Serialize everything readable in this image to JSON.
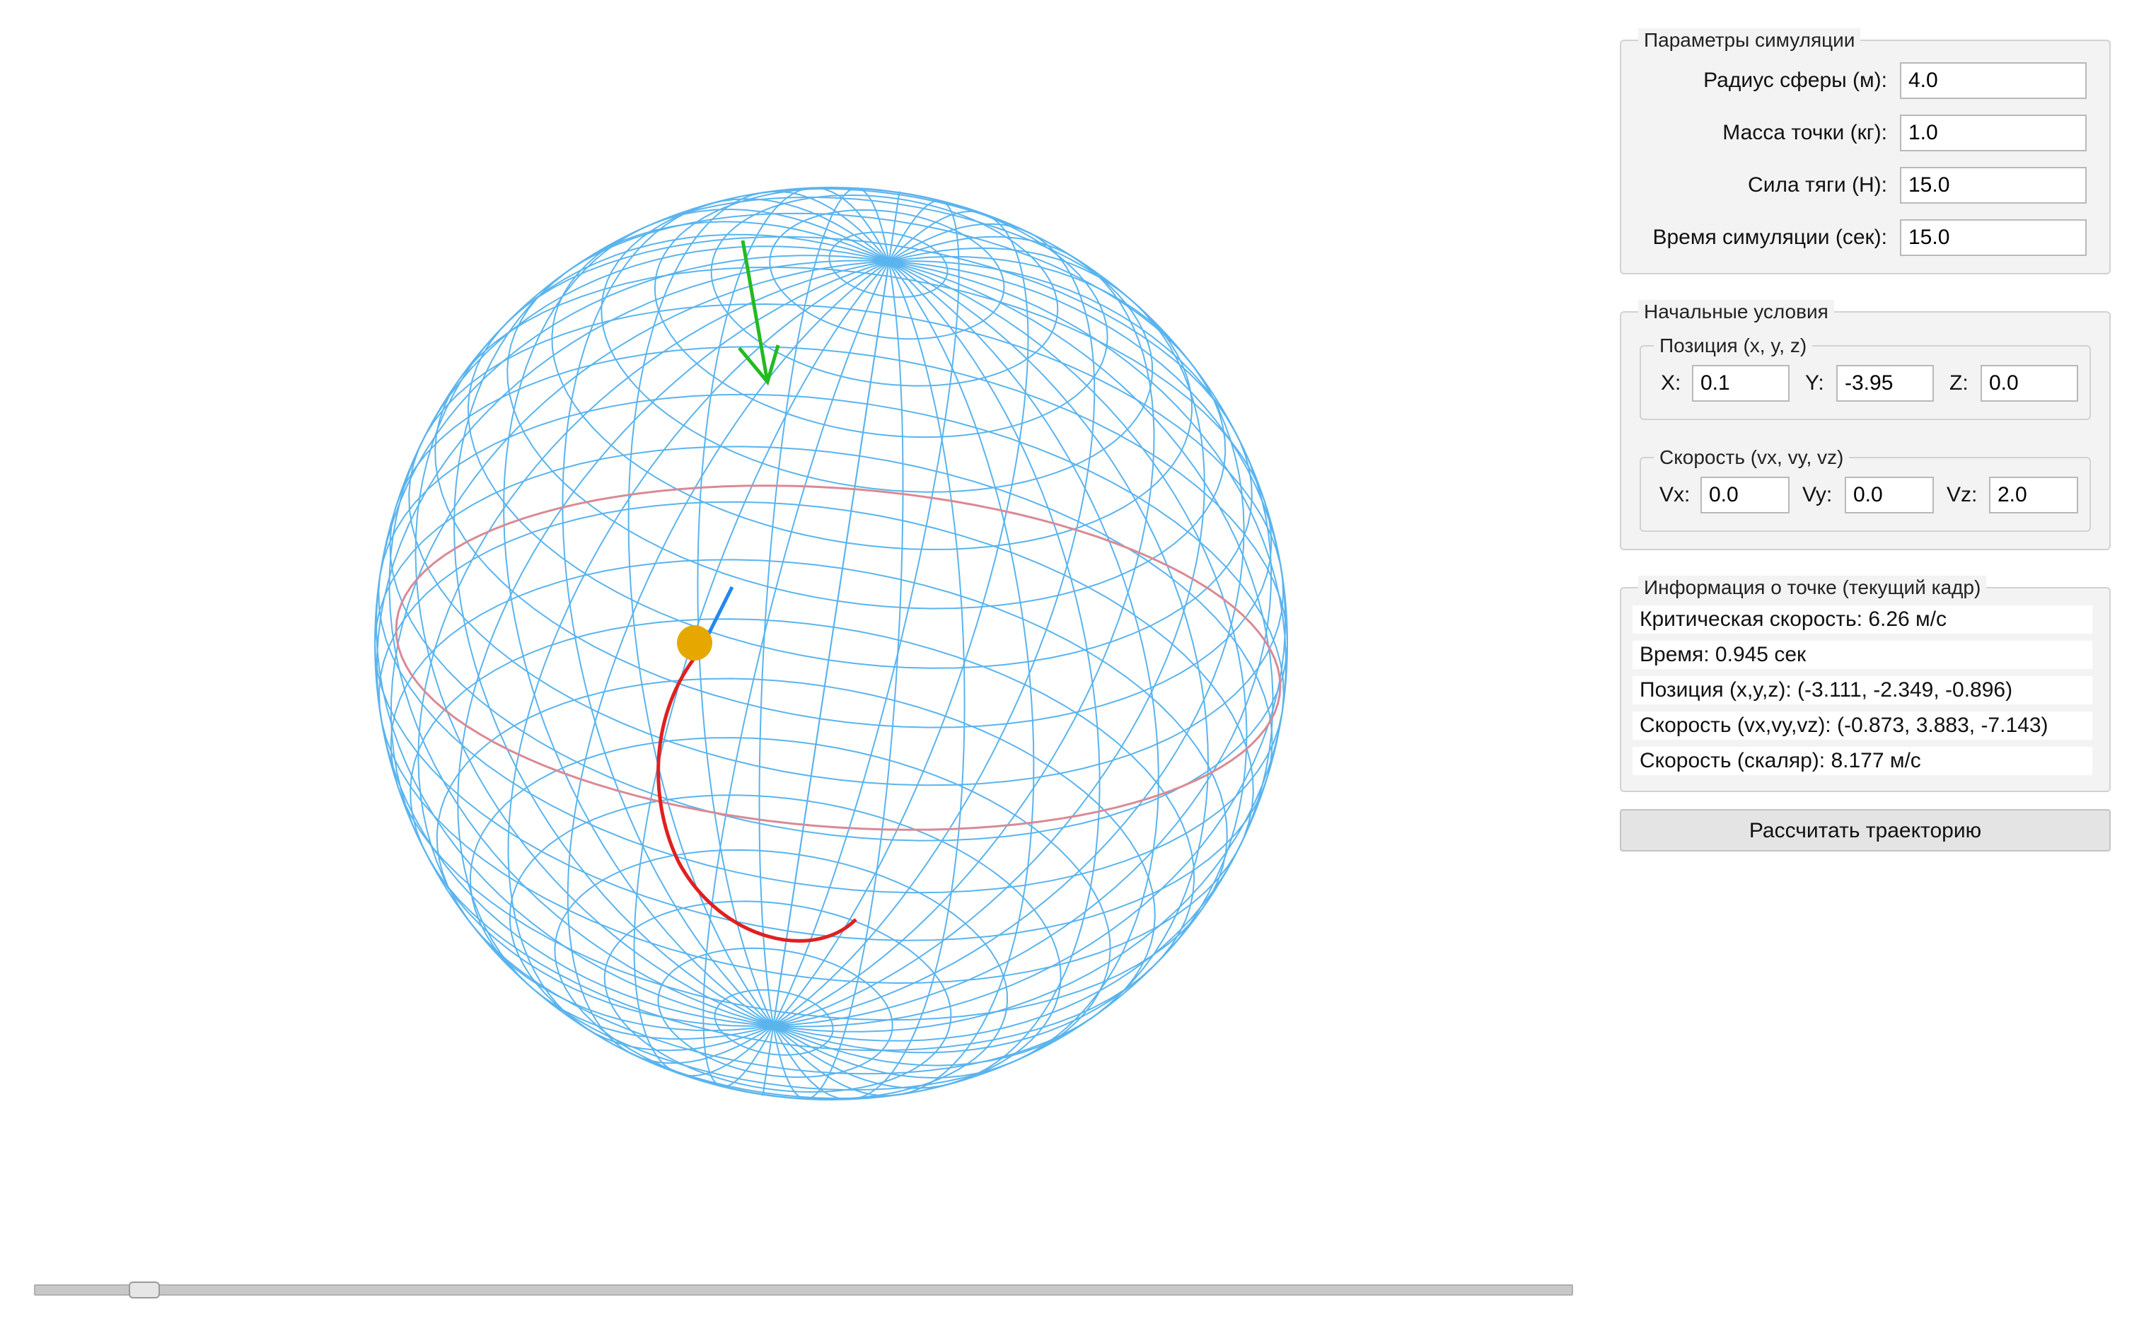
{
  "sim_params": {
    "title": "Параметры симуляции",
    "radius_label": "Радиус сферы (м):",
    "radius_value": "4.0",
    "mass_label": "Масса точки (кг):",
    "mass_value": "1.0",
    "thrust_label": "Сила тяги (Н):",
    "thrust_value": "15.0",
    "time_label": "Время симуляции (сек):",
    "time_value": "15.0"
  },
  "initial_conditions": {
    "title": "Начальные условия",
    "position": {
      "title": "Позиция (x, y, z)",
      "x_label": "X:",
      "x_value": "0.1",
      "y_label": "Y:",
      "y_value": "-3.95",
      "z_label": "Z:",
      "z_value": "0.0"
    },
    "velocity": {
      "title": "Скорость (vx, vy, vz)",
      "vx_label": "Vx:",
      "vx_value": "0.0",
      "vy_label": "Vy:",
      "vy_value": "0.0",
      "vz_label": "Vz:",
      "vz_value": "2.0"
    }
  },
  "point_info": {
    "title": "Информация о точке (текущий кадр)",
    "critical_speed": "Критическая скорость: 6.26 м/с",
    "time": "Время: 0.945 сек",
    "position": "Позиция (x,y,z): (-3.111, -2.349, -0.896)",
    "velocity": "Скорость (vx,vy,vz): (-0.873, 3.883, -7.143)",
    "speed": "Скорость (скаляр): 8.177 м/с"
  },
  "calculate_button": "Рассчитать траекторию",
  "animation": {
    "slider_fraction": 0.063
  },
  "colors": {
    "sphere_wire": "#5ab4ee",
    "trajectory": "#e02020",
    "ring": "#d98a95",
    "point": "#e6a800",
    "gravity_arrow": "#22bb22",
    "velocity_arrow": "#2288ee"
  }
}
